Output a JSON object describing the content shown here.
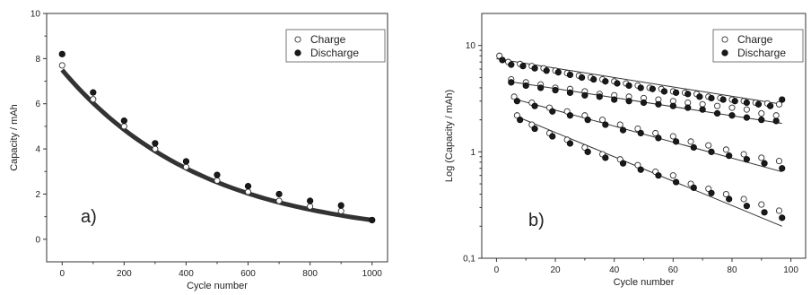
{
  "chart_data": [
    {
      "id": "a",
      "type": "scatter",
      "panel_label": "a)",
      "xlabel": "Cycle number",
      "ylabel": "Capacity / mAh",
      "xlim": [
        -50,
        1050
      ],
      "ylim": [
        -1,
        10
      ],
      "x_ticks": [
        0,
        200,
        400,
        600,
        800,
        1000
      ],
      "y_ticks": [
        0,
        2,
        4,
        6,
        8,
        10
      ],
      "legend": {
        "position": "top-right",
        "entries": [
          "Charge",
          "Discharge"
        ]
      },
      "series": [
        {
          "name": "Charge",
          "marker": "open-circle",
          "x": [
            0,
            100,
            200,
            300,
            400,
            500,
            600,
            700,
            800,
            900,
            1000
          ],
          "y": [
            7.7,
            6.2,
            5.0,
            4.0,
            3.2,
            2.6,
            2.1,
            1.7,
            1.45,
            1.25,
            0.85
          ]
        },
        {
          "name": "Discharge",
          "marker": "filled-circle",
          "x": [
            0,
            100,
            200,
            300,
            400,
            500,
            600,
            700,
            800,
            900,
            1000
          ],
          "y": [
            8.2,
            6.5,
            5.25,
            4.25,
            3.45,
            2.85,
            2.35,
            2.0,
            1.7,
            1.5,
            0.85
          ]
        }
      ],
      "fit": {
        "style": "thick",
        "x": [
          0,
          1000
        ],
        "y": [
          7.5,
          0.85
        ]
      }
    },
    {
      "id": "b",
      "type": "scatter",
      "panel_label": "b)",
      "xlabel": "Cycle number",
      "ylabel": "Log (Capacity / mAh)",
      "y_scale": "log",
      "xlim": [
        -5,
        105
      ],
      "ylim": [
        0.1,
        20
      ],
      "x_ticks": [
        0,
        20,
        40,
        60,
        80,
        100
      ],
      "y_ticks": [
        0.1,
        1,
        10
      ],
      "y_tick_labels": [
        "0,1",
        "1",
        "10"
      ],
      "legend": {
        "position": "top-right",
        "entries": [
          "Charge",
          "Discharge"
        ]
      },
      "series": [
        {
          "name": "Charge",
          "marker": "open-circle",
          "groups": [
            {
              "x": [
                1,
                4,
                8,
                12,
                16,
                20,
                24,
                28,
                32,
                36,
                40,
                44,
                48,
                52,
                56,
                60,
                64,
                68,
                72,
                76,
                80,
                84,
                88,
                92,
                96
              ],
              "y": [
                8.0,
                7.0,
                6.7,
                6.4,
                6.1,
                5.8,
                5.5,
                5.2,
                5.0,
                4.8,
                4.6,
                4.4,
                4.2,
                4.0,
                3.9,
                3.7,
                3.6,
                3.5,
                3.3,
                3.2,
                3.1,
                3.0,
                2.9,
                2.85,
                2.8
              ]
            },
            {
              "x": [
                5,
                10,
                15,
                20,
                25,
                30,
                35,
                40,
                45,
                50,
                55,
                60,
                65,
                70,
                75,
                80,
                85,
                90,
                95
              ],
              "y": [
                4.8,
                4.5,
                4.3,
                4.0,
                3.9,
                3.7,
                3.5,
                3.4,
                3.3,
                3.2,
                3.1,
                3.0,
                2.9,
                2.8,
                2.7,
                2.6,
                2.5,
                2.3,
                2.2
              ]
            },
            {
              "x": [
                6,
                12,
                18,
                24,
                30,
                36,
                42,
                48,
                54,
                60,
                66,
                72,
                78,
                84,
                90,
                96
              ],
              "y": [
                3.3,
                2.9,
                2.6,
                2.4,
                2.2,
                2.0,
                1.8,
                1.65,
                1.5,
                1.4,
                1.25,
                1.15,
                1.05,
                0.95,
                0.88,
                0.82
              ]
            },
            {
              "x": [
                7,
                12,
                18,
                24,
                30,
                36,
                42,
                48,
                54,
                60,
                66,
                72,
                78,
                84,
                90,
                96
              ],
              "y": [
                2.2,
                1.8,
                1.5,
                1.3,
                1.1,
                0.95,
                0.85,
                0.75,
                0.65,
                0.6,
                0.5,
                0.45,
                0.4,
                0.36,
                0.32,
                0.28
              ]
            }
          ]
        },
        {
          "name": "Discharge",
          "marker": "filled-circle",
          "groups": [
            {
              "x": [
                2,
                5,
                9,
                13,
                17,
                21,
                25,
                29,
                33,
                37,
                41,
                45,
                49,
                53,
                57,
                61,
                65,
                69,
                73,
                77,
                81,
                85,
                89,
                93,
                97
              ],
              "y": [
                7.3,
                6.6,
                6.4,
                6.1,
                5.8,
                5.6,
                5.3,
                5.0,
                4.8,
                4.6,
                4.4,
                4.2,
                4.0,
                3.9,
                3.7,
                3.6,
                3.5,
                3.3,
                3.2,
                3.1,
                3.0,
                2.9,
                2.8,
                2.7,
                3.1
              ]
            },
            {
              "x": [
                5,
                10,
                15,
                20,
                25,
                30,
                35,
                40,
                45,
                50,
                55,
                60,
                65,
                70,
                75,
                80,
                85,
                90,
                95
              ],
              "y": [
                4.5,
                4.2,
                4.0,
                3.8,
                3.6,
                3.4,
                3.3,
                3.1,
                3.0,
                2.9,
                2.8,
                2.7,
                2.6,
                2.5,
                2.3,
                2.2,
                2.1,
                2.0,
                1.95
              ]
            },
            {
              "x": [
                7,
                13,
                19,
                25,
                31,
                37,
                43,
                49,
                55,
                61,
                67,
                73,
                79,
                85,
                91,
                97
              ],
              "y": [
                3.0,
                2.7,
                2.4,
                2.2,
                2.0,
                1.8,
                1.6,
                1.5,
                1.35,
                1.25,
                1.1,
                1.0,
                0.92,
                0.85,
                0.78,
                0.7
              ]
            },
            {
              "x": [
                8,
                13,
                19,
                25,
                31,
                37,
                43,
                49,
                55,
                61,
                67,
                73,
                79,
                85,
                91,
                97
              ],
              "y": [
                2.0,
                1.65,
                1.4,
                1.2,
                1.0,
                0.88,
                0.78,
                0.68,
                0.6,
                0.52,
                0.46,
                0.41,
                0.36,
                0.31,
                0.27,
                0.24
              ]
            }
          ]
        }
      ],
      "fits": [
        {
          "x": [
            0,
            97
          ],
          "y": [
            7.5,
            2.8
          ]
        },
        {
          "x": [
            4,
            97
          ],
          "y": [
            4.6,
            1.85
          ]
        },
        {
          "x": [
            5,
            97
          ],
          "y": [
            3.2,
            0.65
          ]
        },
        {
          "x": [
            6,
            97
          ],
          "y": [
            2.2,
            0.2
          ]
        }
      ]
    }
  ]
}
